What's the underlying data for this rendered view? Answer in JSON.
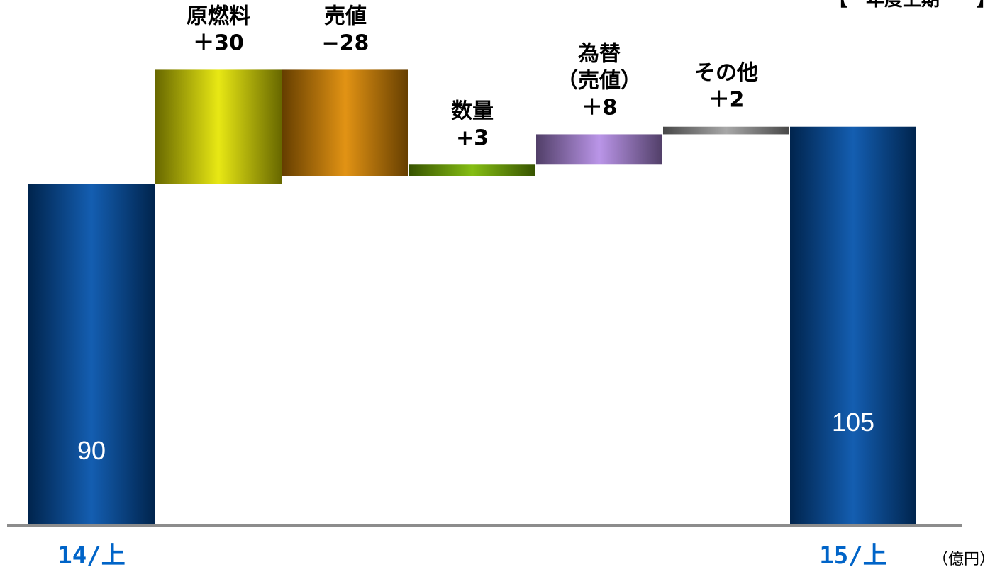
{
  "chart_data": {
    "type": "bar",
    "subtype": "waterfall",
    "header_fragment": "【　年度上期　　】",
    "unit": "（億円）",
    "baseline_color": "#8c8c8c",
    "items": [
      {
        "kind": "total",
        "category": "14/上",
        "value": 90,
        "label": "90",
        "color": "#0050aa"
      },
      {
        "kind": "delta",
        "name": "原燃料",
        "delta": 30,
        "label": "＋30",
        "color": "#e6e600"
      },
      {
        "kind": "delta",
        "name": "売値",
        "delta": -28,
        "label": "−28",
        "color": "#e08a00"
      },
      {
        "kind": "delta",
        "name": "数量",
        "delta": 3,
        "label": "+3",
        "color": "#7ab800"
      },
      {
        "kind": "delta",
        "name": "為替\n（売値）",
        "delta": 8,
        "label": "＋8",
        "color": "#b48ce6"
      },
      {
        "kind": "delta",
        "name": "その他",
        "delta": 2,
        "label": "＋2",
        "color": "#a0a0a0"
      },
      {
        "kind": "total",
        "category": "15/上",
        "value": 105,
        "label": "105",
        "color": "#0050aa"
      }
    ]
  }
}
